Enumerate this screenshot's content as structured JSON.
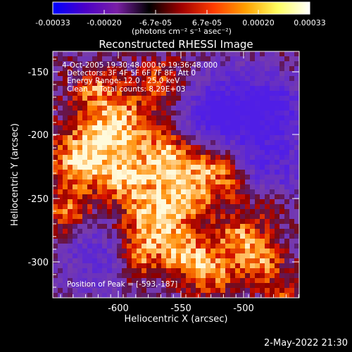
{
  "colorbar": {
    "tick_labels": [
      "-0.00033",
      "-0.00020",
      "-6.7e-05",
      "6.7e-05",
      "0.00020",
      "0.00033"
    ],
    "unit_label": "(photons cm⁻² s⁻¹ asec⁻²)",
    "range": [
      -0.00033,
      0.00033
    ],
    "colors": [
      "#0000ff",
      "#4b00c8",
      "#7a1fa6",
      "#000000",
      "#a00000",
      "#ff3c00",
      "#ffa000",
      "#ffff60",
      "#ffffff"
    ]
  },
  "image": {
    "title": "Reconstructed RHESSI Image",
    "info_lines": [
      "4-Oct-2005 19:30:48.000 to 19:36:48.000",
      "Detectors: 3F 4F 5F 6F 7F 8F, Att 0",
      "Energy Range: 12.0 - 25.0 keV",
      "Clean     Total counts: 8.29E+03"
    ],
    "peak_label": "Position of Peak = [-593,-187]"
  },
  "axes": {
    "xlabel": "Heliocentric X (arcsec)",
    "ylabel": "Heliocentric Y (arcsec)",
    "x_ticks": [
      "-600",
      "-550",
      "-500"
    ],
    "y_ticks": [
      "-150",
      "-200",
      "-250",
      "-300"
    ]
  },
  "footer": {
    "date": "2-May-2022 21:30"
  }
}
